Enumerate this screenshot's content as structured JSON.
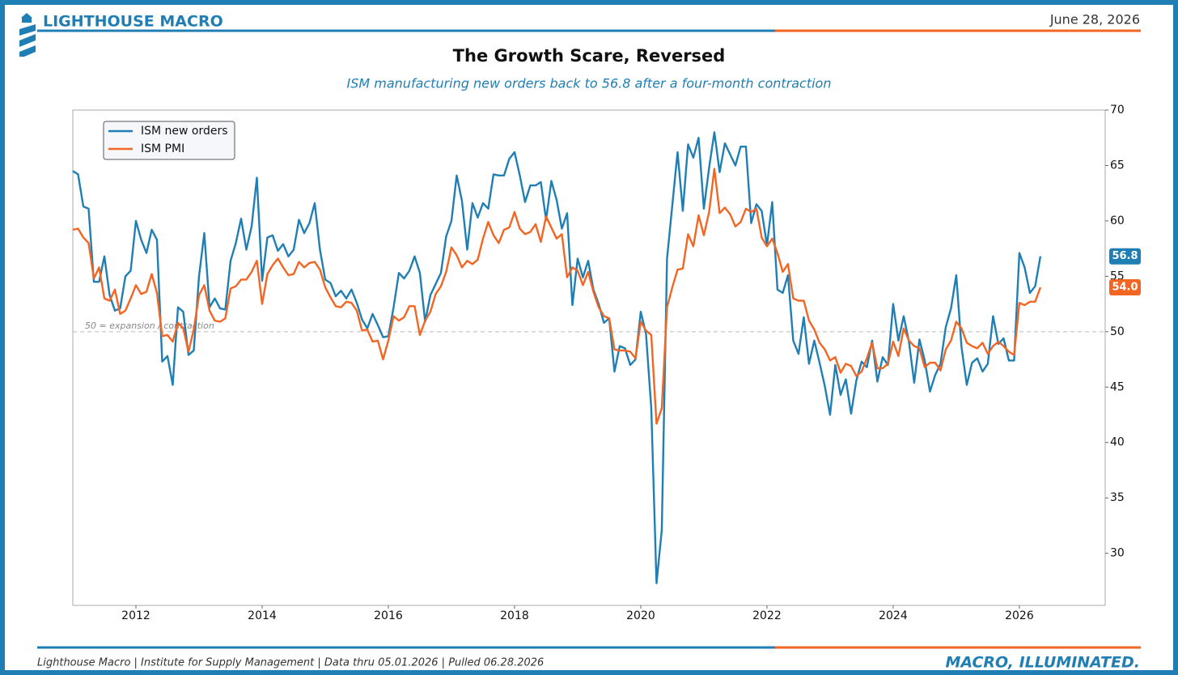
{
  "header": {
    "brand": "LIGHTHOUSE MACRO",
    "date": "June 28, 2026"
  },
  "footer": {
    "source": "Lighthouse Macro | Institute for Supply Management | Data thru 05.01.2026 | Pulled 06.28.2026",
    "tagline": "MACRO, ILLUMINATED."
  },
  "chart_data": {
    "type": "line",
    "title": "The Growth Scare, Reversed",
    "subtitle": "ISM manufacturing new orders back to 56.8 after a four-month contraction",
    "annotation": "50 = expansion / contraction",
    "reference_line": 50,
    "xlim": [
      2011,
      2027.36
    ],
    "xticks": [
      2012,
      2014,
      2016,
      2018,
      2020,
      2022,
      2024,
      2026
    ],
    "ylim": [
      25.3,
      70
    ],
    "yticks": [
      30,
      35,
      40,
      45,
      50,
      55,
      60,
      65,
      70
    ],
    "legend": "upper left",
    "x": [
      "2011-01",
      "2011-02",
      "2011-03",
      "2011-04",
      "2011-05",
      "2011-06",
      "2011-07",
      "2011-08",
      "2011-09",
      "2011-10",
      "2011-11",
      "2011-12",
      "2012-01",
      "2012-02",
      "2012-03",
      "2012-04",
      "2012-05",
      "2012-06",
      "2012-07",
      "2012-08",
      "2012-09",
      "2012-10",
      "2012-11",
      "2012-12",
      "2013-01",
      "2013-02",
      "2013-03",
      "2013-04",
      "2013-05",
      "2013-06",
      "2013-07",
      "2013-08",
      "2013-09",
      "2013-10",
      "2013-11",
      "2013-12",
      "2014-01",
      "2014-02",
      "2014-03",
      "2014-04",
      "2014-05",
      "2014-06",
      "2014-07",
      "2014-08",
      "2014-09",
      "2014-10",
      "2014-11",
      "2014-12",
      "2015-01",
      "2015-02",
      "2015-03",
      "2015-04",
      "2015-05",
      "2015-06",
      "2015-07",
      "2015-08",
      "2015-09",
      "2015-10",
      "2015-11",
      "2015-12",
      "2016-01",
      "2016-02",
      "2016-03",
      "2016-04",
      "2016-05",
      "2016-06",
      "2016-07",
      "2016-08",
      "2016-09",
      "2016-10",
      "2016-11",
      "2016-12",
      "2017-01",
      "2017-02",
      "2017-03",
      "2017-04",
      "2017-05",
      "2017-06",
      "2017-07",
      "2017-08",
      "2017-09",
      "2017-10",
      "2017-11",
      "2017-12",
      "2018-01",
      "2018-02",
      "2018-03",
      "2018-04",
      "2018-05",
      "2018-06",
      "2018-07",
      "2018-08",
      "2018-09",
      "2018-10",
      "2018-11",
      "2018-12",
      "2019-01",
      "2019-02",
      "2019-03",
      "2019-04",
      "2019-05",
      "2019-06",
      "2019-07",
      "2019-08",
      "2019-09",
      "2019-10",
      "2019-11",
      "2019-12",
      "2020-01",
      "2020-02",
      "2020-03",
      "2020-04",
      "2020-05",
      "2020-06",
      "2020-07",
      "2020-08",
      "2020-09",
      "2020-10",
      "2020-11",
      "2020-12",
      "2021-01",
      "2021-02",
      "2021-03",
      "2021-04",
      "2021-05",
      "2021-06",
      "2021-07",
      "2021-08",
      "2021-09",
      "2021-10",
      "2021-11",
      "2021-12",
      "2022-01",
      "2022-02",
      "2022-03",
      "2022-04",
      "2022-05",
      "2022-06",
      "2022-07",
      "2022-08",
      "2022-09",
      "2022-10",
      "2022-11",
      "2022-12",
      "2023-01",
      "2023-02",
      "2023-03",
      "2023-04",
      "2023-05",
      "2023-06",
      "2023-07",
      "2023-08",
      "2023-09",
      "2023-10",
      "2023-11",
      "2023-12",
      "2024-01",
      "2024-02",
      "2024-03",
      "2024-04",
      "2024-05",
      "2024-06",
      "2024-07",
      "2024-08",
      "2024-09",
      "2024-10",
      "2024-11",
      "2024-12",
      "2025-01",
      "2025-02",
      "2025-03",
      "2025-04",
      "2025-05",
      "2025-06",
      "2025-07",
      "2025-08",
      "2025-09",
      "2025-10",
      "2025-11",
      "2025-12",
      "2026-01",
      "2026-02",
      "2026-03",
      "2026-04",
      "2026-05"
    ],
    "series": [
      {
        "name": "ISM new orders",
        "color": "#1f7fb4",
        "end_label": "56.8",
        "values": [
          64.5,
          64.2,
          61.3,
          61.1,
          54.5,
          54.5,
          56.8,
          53.3,
          51.9,
          52.1,
          55.0,
          55.5,
          60.0,
          58.3,
          57.1,
          59.2,
          58.3,
          47.3,
          47.8,
          45.2,
          52.2,
          51.8,
          47.9,
          48.3,
          55.0,
          58.9,
          52.2,
          53.0,
          52.1,
          52.0,
          56.4,
          58.0,
          60.2,
          57.4,
          59.5,
          63.9,
          54.6,
          58.5,
          58.7,
          57.3,
          57.9,
          56.8,
          57.4,
          60.1,
          58.9,
          59.8,
          61.6,
          57.4,
          54.7,
          54.4,
          53.2,
          53.7,
          53.0,
          53.8,
          52.6,
          51.1,
          50.3,
          51.6,
          50.6,
          49.5,
          49.6,
          52.2,
          55.3,
          54.8,
          55.5,
          56.8,
          55.3,
          50.9,
          53.3,
          54.3,
          55.3,
          58.6,
          60.0,
          64.1,
          61.8,
          57.4,
          61.6,
          60.3,
          61.6,
          61.1,
          64.2,
          64.1,
          64.1,
          65.6,
          66.2,
          64.1,
          61.7,
          63.2,
          63.2,
          63.5,
          60.1,
          63.6,
          61.9,
          59.3,
          60.7,
          52.4,
          56.6,
          54.9,
          56.4,
          53.8,
          52.5,
          50.8,
          51.2,
          46.4,
          48.7,
          48.5,
          47.0,
          47.5,
          51.8,
          49.8,
          43.1,
          27.3,
          32.1,
          56.6,
          61.4,
          66.2,
          60.9,
          66.9,
          65.7,
          67.5,
          61.1,
          64.8,
          68.0,
          64.4,
          67.0,
          66.0,
          65.0,
          66.7,
          66.7,
          59.8,
          61.5,
          60.9,
          57.8,
          61.7,
          53.8,
          53.5,
          55.1,
          49.2,
          48.0,
          51.3,
          47.1,
          49.2,
          47.2,
          45.1,
          42.5,
          47.0,
          44.3,
          45.7,
          42.6,
          45.6,
          47.3,
          46.8,
          49.2,
          45.5,
          47.7,
          47.0,
          52.5,
          49.2,
          51.4,
          49.1,
          45.4,
          49.3,
          47.4,
          44.6,
          46.1,
          47.1,
          50.4,
          52.1,
          55.1,
          48.6,
          45.2,
          47.2,
          47.6,
          46.4,
          47.1,
          51.4,
          48.9,
          49.4,
          47.4,
          47.4,
          57.1,
          55.8,
          53.5,
          54.1,
          56.8
        ]
      },
      {
        "name": "ISM PMI",
        "color": "#f26522",
        "end_label": "54.0",
        "values": [
          59.2,
          59.3,
          58.5,
          58.0,
          54.8,
          55.8,
          53.0,
          52.8,
          53.8,
          51.6,
          51.9,
          53.0,
          54.2,
          53.4,
          53.6,
          55.2,
          53.5,
          49.6,
          49.7,
          49.1,
          50.8,
          50.3,
          48.2,
          50.2,
          53.3,
          54.2,
          51.9,
          51.0,
          50.9,
          51.2,
          53.9,
          54.1,
          54.7,
          54.7,
          55.4,
          56.4,
          52.5,
          55.2,
          56.0,
          56.6,
          55.8,
          55.1,
          55.2,
          56.3,
          55.8,
          56.2,
          56.3,
          55.6,
          54.0,
          53.1,
          52.3,
          52.2,
          52.7,
          52.6,
          51.9,
          50.1,
          50.2,
          49.1,
          49.2,
          47.5,
          49.2,
          51.4,
          51.0,
          51.3,
          52.3,
          52.3,
          49.7,
          51.0,
          51.8,
          53.4,
          54.1,
          55.4,
          57.6,
          56.9,
          55.8,
          56.4,
          56.1,
          56.5,
          58.4,
          59.9,
          58.7,
          58.0,
          59.2,
          59.4,
          60.8,
          59.3,
          58.8,
          59.0,
          59.7,
          58.1,
          60.4,
          59.4,
          58.4,
          58.8,
          54.9,
          55.8,
          55.5,
          54.2,
          55.4,
          53.6,
          52.2,
          51.4,
          51.2,
          48.4,
          48.3,
          48.3,
          48.2,
          47.6,
          50.9,
          50.1,
          49.7,
          41.7,
          43.1,
          52.2,
          54.0,
          55.6,
          55.7,
          58.8,
          57.7,
          60.5,
          58.7,
          60.8,
          64.7,
          60.7,
          61.2,
          60.6,
          59.5,
          59.9,
          61.1,
          60.8,
          61.1,
          58.5,
          57.7,
          58.4,
          57.1,
          55.4,
          56.1,
          53.0,
          52.8,
          52.8,
          51.0,
          50.2,
          49.0,
          48.4,
          47.4,
          47.7,
          46.3,
          47.1,
          46.9,
          46.0,
          46.4,
          47.6,
          49.0,
          46.7,
          46.7,
          47.1,
          49.1,
          47.8,
          50.3,
          49.2,
          48.7,
          48.5,
          46.8,
          47.2,
          47.2,
          46.5,
          48.4,
          49.2,
          50.9,
          50.3,
          49.0,
          48.7,
          48.5,
          49.0,
          48.0,
          48.7,
          49.1,
          48.7,
          48.2,
          47.9,
          52.6,
          52.4,
          52.7,
          52.7,
          54.0
        ]
      }
    ]
  }
}
